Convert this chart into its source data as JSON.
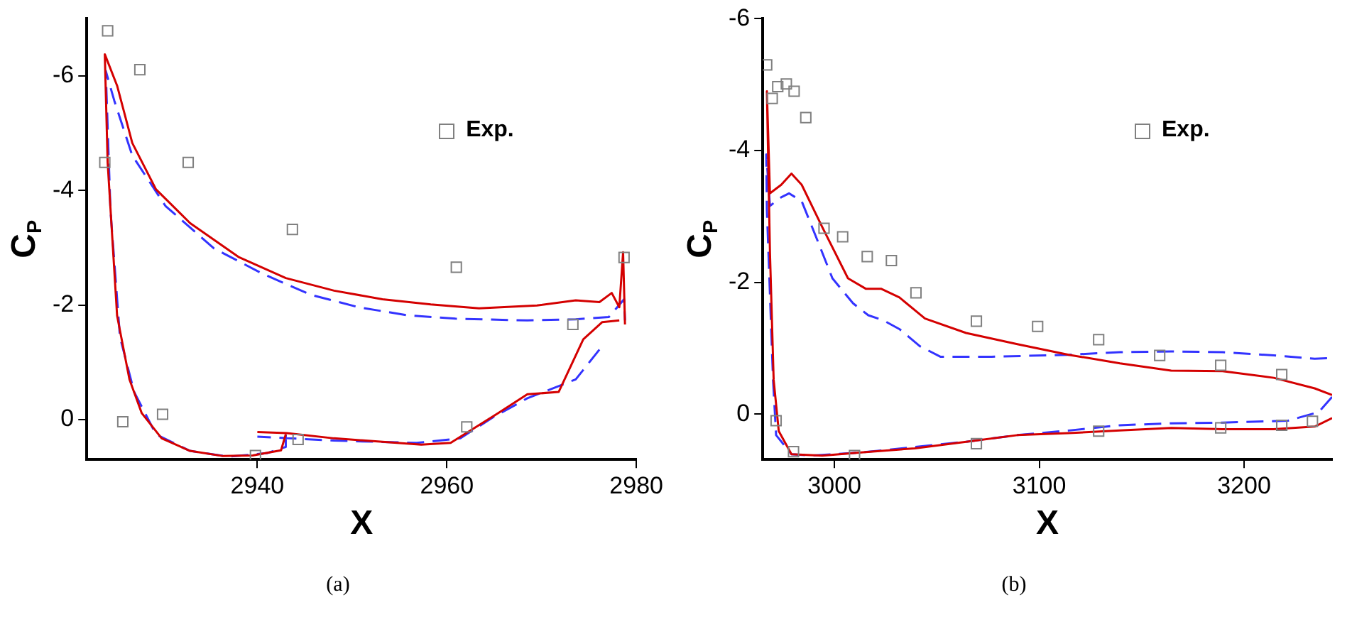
{
  "chart_data": [
    {
      "type": "line",
      "xlabel": "X",
      "ylabel": "C$_{P}$",
      "annotations": [
        "(a)"
      ],
      "xlim": [
        2922,
        2980
      ],
      "ylim": [
        0.7,
        -7
      ],
      "xticks": [
        2940,
        2960,
        2980
      ],
      "yticks": [
        0,
        -2,
        -4,
        -6
      ],
      "grid": false,
      "legend": "top right",
      "series": [
        {
          "name": "Exp.",
          "type": "scatter",
          "marker": "square",
          "color": "#808080",
          "x": [
            2924.2,
            2927.6,
            2923.9,
            2932.7,
            2943.7,
            2961.0,
            2978.7,
            2973.3,
            2925.8,
            2930.0,
            2939.8,
            2944.3,
            2962.1
          ],
          "values": [
            -6.79,
            -6.11,
            -4.49,
            -4.49,
            -3.32,
            -2.66,
            -2.83,
            -1.66,
            0.04,
            -0.09,
            0.63,
            0.35,
            0.13
          ]
        },
        {
          "type": "line",
          "color": "#d40000",
          "line_style": "solid",
          "marker": "none",
          "x": [
            2943,
            2942.5,
            2939.5,
            2936.4,
            2932.9,
            2929.9,
            2927.8,
            2926.5,
            2925.2,
            2924.2,
            2923.9,
            2925.2,
            2926.8,
            2929.3,
            2932.9,
            2938,
            2943,
            2948.1,
            2953.2,
            2958.3,
            2963.4,
            2969.5,
            2973.6,
            2976.1,
            2977.4,
            2978.2,
            2978.6,
            2978.8,
            null,
            2978.2,
            2976.4,
            2974.4,
            2971.8,
            2968.5,
            2965.4,
            2960.4,
            2957.3,
            2948.1,
            2943.1,
            2940
          ],
          "values": [
            0.26,
            0.54,
            0.63,
            0.64,
            0.55,
            0.33,
            -0.11,
            -0.7,
            -1.81,
            -4.49,
            -6.38,
            -5.83,
            -4.83,
            -4.02,
            -3.43,
            -2.84,
            -2.47,
            -2.25,
            -2.1,
            -2.01,
            -1.94,
            -1.99,
            -2.08,
            -2.05,
            -2.21,
            -1.96,
            -2.92,
            -1.66,
            null,
            -1.73,
            -1.7,
            -1.4,
            -0.48,
            -0.44,
            -0.11,
            0.41,
            0.44,
            0.33,
            0.24,
            0.22
          ]
        },
        {
          "type": "line",
          "color": "#3333ff",
          "line_style": "dashed",
          "marker": "none",
          "x": [
            2943,
            2943,
            2941,
            2936.9,
            2932.9,
            2929.3,
            2927,
            2925.5,
            2924.5,
            2924,
            2924.9,
            2926.8,
            2930.3,
            2935.4,
            2940.5,
            2945.6,
            2950.7,
            2955.8,
            2960.9,
            2968.5,
            2973.6,
            2977.1,
            2978.7,
            2978.8,
            null,
            2976.1,
            2973.6,
            2968.5,
            2964.9,
            2961.4,
            2956.8,
            2948.1,
            2940
          ],
          "values": [
            0.26,
            0.48,
            0.59,
            0.65,
            0.55,
            0.26,
            -0.48,
            -1.44,
            -3.65,
            -6.09,
            -5.57,
            -4.61,
            -3.73,
            -2.99,
            -2.55,
            -2.18,
            -1.96,
            -1.82,
            -1.76,
            -1.73,
            -1.75,
            -1.79,
            -2.1,
            -1.73,
            null,
            -1.22,
            -0.7,
            -0.37,
            -0.04,
            0.33,
            0.41,
            0.37,
            0.3
          ]
        }
      ]
    },
    {
      "type": "line",
      "xlabel": "X",
      "ylabel": "C$_{P}$",
      "annotations": [
        "(b)"
      ],
      "xlim": [
        2965,
        3243
      ],
      "ylim": [
        0.69,
        -6
      ],
      "xticks": [
        3000,
        3100,
        3200
      ],
      "yticks": [
        0,
        -2,
        -4,
        -6
      ],
      "grid": false,
      "legend": "top right",
      "series": [
        {
          "name": "Exp.",
          "type": "scatter",
          "marker": "square",
          "color": "#808080",
          "x": [
            2966.9,
            2969.6,
            2972.3,
            2976.5,
            2980.3,
            2986,
            2994.9,
            3004,
            3016,
            3027.8,
            3039.8,
            3069.3,
            3099.2,
            3129,
            3158.8,
            3188.6,
            3218.4,
            2971.5,
            2980,
            3009.8,
            3069.3,
            3129,
            3188.6,
            3218.4,
            3233.4
          ],
          "values": [
            -5.3,
            -4.79,
            -4.97,
            -5.01,
            -4.9,
            -4.5,
            -2.82,
            -2.69,
            -2.39,
            -2.33,
            -1.84,
            -1.41,
            -1.33,
            -1.13,
            -0.89,
            -0.74,
            -0.6,
            0.1,
            0.57,
            0.63,
            0.45,
            0.26,
            0.21,
            0.17,
            0.11
          ]
        },
        {
          "type": "line",
          "color": "#d40000",
          "line_style": "solid",
          "marker": "none",
          "x": [
            3243,
            3234.5,
            3214.5,
            3189.5,
            3164.4,
            3139.4,
            3114.4,
            3089.3,
            3064.3,
            3039.2,
            3014.1,
            2994,
            2979,
            2972.8,
            2970.3,
            2968.5,
            2967,
            2968.5,
            2974,
            2979,
            2984,
            2994,
            3006.6,
            3015.4,
            3022.9,
            3031.7,
            3044.2,
            3064.3,
            3089.3,
            3114.4,
            3139.4,
            3164.4,
            3189.5,
            3214.5,
            3234.5,
            3243
          ],
          "values": [
            0.06,
            0.19,
            0.23,
            0.23,
            0.21,
            0.25,
            0.29,
            0.32,
            0.42,
            0.52,
            0.58,
            0.63,
            0.61,
            0.26,
            -0.52,
            -2.45,
            -4.9,
            -3.35,
            -3.48,
            -3.65,
            -3.48,
            -2.84,
            -2.06,
            -1.9,
            -1.9,
            -1.77,
            -1.45,
            -1.23,
            -1.06,
            -0.9,
            -0.77,
            -0.66,
            -0.65,
            -0.55,
            -0.39,
            -0.29
          ]
        },
        {
          "type": "line",
          "color": "#3333ff",
          "line_style": "dashed",
          "marker": "none",
          "x": [
            3243,
            3236.5,
            3221.5,
            3189.5,
            3164.4,
            3139.4,
            3114.4,
            3089.3,
            3064.3,
            3039.2,
            3014.1,
            2989,
            2979,
            2971.5,
            2970,
            2967,
            2966.7,
            2968.5,
            2974,
            2977.8,
            2984,
            2991.5,
            2999,
            3009.1,
            3016.5,
            3024,
            3031.7,
            3041.7,
            3051.7,
            3076.8,
            3114.4,
            3139.4,
            3164.4,
            3189.5,
            3214.5,
            3234.5,
            3243
          ],
          "values": [
            -0.26,
            -0.03,
            0.1,
            0.13,
            0.14,
            0.17,
            0.25,
            0.32,
            0.42,
            0.5,
            0.58,
            0.63,
            0.61,
            0.32,
            -0.52,
            -3.1,
            -3.94,
            -3.16,
            -3.29,
            -3.35,
            -3.23,
            -2.65,
            -2.06,
            -1.68,
            -1.5,
            -1.42,
            -1.29,
            -1.03,
            -0.87,
            -0.87,
            -0.9,
            -0.94,
            -0.95,
            -0.94,
            -0.89,
            -0.84,
            -0.85
          ]
        }
      ]
    }
  ]
}
